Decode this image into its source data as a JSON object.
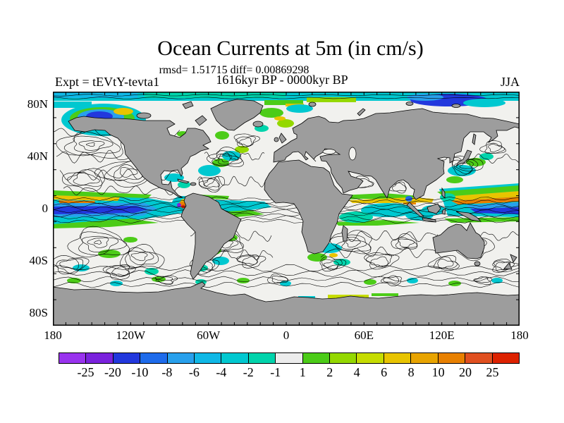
{
  "title": "Ocean Currents at 5m (in cm/s)",
  "annotations": {
    "stats": "rmsd= 1.51715 diff= 0.00869298",
    "period": "1616kyr BP - 0000kyr BP",
    "experiment": "Expt = tEVtY-tevta1",
    "season": "JJA"
  },
  "axes": {
    "lat_ticks": [
      "80N",
      "40N",
      "0",
      "40S",
      "80S"
    ],
    "lon_ticks": [
      "180",
      "120W",
      "60W",
      "0",
      "60E",
      "120E",
      "180"
    ]
  },
  "colorbar": {
    "labels": [
      "-25",
      "-20",
      "-10",
      "-8",
      "-6",
      "-4",
      "-2",
      "-1",
      "1",
      "2",
      "4",
      "6",
      "8",
      "10",
      "20",
      "25"
    ],
    "colors": [
      "#9933EE",
      "#7A22DD",
      "#2238DD",
      "#1E6BEB",
      "#28A0EC",
      "#10B8E6",
      "#00C8D0",
      "#00D4AC",
      "#ECECEC",
      "#4CCC18",
      "#94D800",
      "#C6DC00",
      "#E8C400",
      "#E8A400",
      "#E88000",
      "#E05020",
      "#DD2200"
    ]
  },
  "chart_data": {
    "type": "heatmap",
    "title": "Ocean Currents at 5m (in cm/s)",
    "subtitle_stats": "rmsd= 1.51715 diff= 0.00869298",
    "rmsd": 1.51715,
    "diff": 0.00869298,
    "comparison_period": "1616kyr BP - 0000kyr BP",
    "experiment": "tEVtY-tevta1",
    "season": "JJA",
    "variable": "ocean current speed difference between two time periods",
    "depth": "5m",
    "units": "cm/s",
    "projection": "global equirectangular latitude-longitude map with gray land, contoured current streamlines and filled speed-difference anomalies",
    "x_axis": {
      "label": "longitude",
      "tick_labels": [
        "180",
        "120W",
        "60W",
        "0",
        "60E",
        "120E",
        "180"
      ],
      "range_deg": [
        -180,
        180
      ]
    },
    "y_axis": {
      "label": "latitude",
      "tick_labels": [
        "80N",
        "40N",
        "0",
        "40S",
        "80S"
      ],
      "range_deg": [
        -90,
        90
      ]
    },
    "colorbar_levels": [
      -25,
      -20,
      -10,
      -8,
      -6,
      -4,
      -2,
      -1,
      1,
      2,
      4,
      6,
      8,
      10,
      20,
      25
    ],
    "colorbar_colors": [
      "#9933EE",
      "#7A22DD",
      "#2238DD",
      "#1E6BEB",
      "#28A0EC",
      "#10B8E6",
      "#00C8D0",
      "#00D4AC",
      "#ECECEC",
      "#4CCC18",
      "#94D800",
      "#C6DC00",
      "#E8C400",
      "#E8A400",
      "#E88000",
      "#E05020",
      "#DD2200"
    ],
    "legend_position": "bottom",
    "land_color": "#9D9D9D",
    "ocean_color": "#F1F1EE",
    "contour_color": "#000000"
  }
}
